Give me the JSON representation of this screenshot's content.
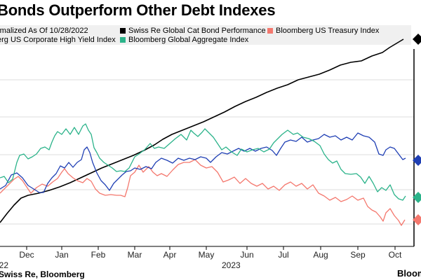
{
  "title": "Bonds Outperform Other Debt Indexes",
  "footer": "Swiss Re, Bloomberg",
  "brand": "Bloom",
  "legend_items": [
    {
      "label": "rmalized As Of 10/28/2022",
      "color": ""
    },
    {
      "label": "Swiss Re Global Cat Bond Performance",
      "color": "#000000"
    },
    {
      "label": "Bloomberg US Treasury Index",
      "color": "#f4786e"
    },
    {
      "label": "erg US Corporate High Yield Index",
      "color": ""
    },
    {
      "label": "Bloomberg Global Aggregate Index",
      "color": "#2bb38a"
    }
  ],
  "chart_data": {
    "type": "line",
    "x_tick_labels": [
      "Dec",
      "Jan",
      "Feb",
      "Mar",
      "Apr",
      "May",
      "Jun",
      "Jul",
      "Aug",
      "Sep",
      "Oct"
    ],
    "year_labels": [
      "022",
      "2023"
    ],
    "grid": true,
    "legend": "top",
    "series": [
      {
        "name": "Swiss Re Global Cat Bond Performance",
        "color": "#000000",
        "values": [
          [
            0,
            318
          ],
          [
            10,
            305
          ],
          [
            20,
            293
          ],
          [
            30,
            283
          ],
          [
            40,
            279
          ],
          [
            55,
            276
          ],
          [
            70,
            272
          ],
          [
            85,
            267
          ],
          [
            100,
            261
          ],
          [
            115,
            254
          ],
          [
            130,
            247
          ],
          [
            145,
            240
          ],
          [
            160,
            234
          ],
          [
            175,
            228
          ],
          [
            190,
            222
          ],
          [
            205,
            215
          ],
          [
            220,
            207
          ],
          [
            232,
            199
          ],
          [
            245,
            192
          ],
          [
            260,
            186
          ],
          [
            275,
            180
          ],
          [
            290,
            174
          ],
          [
            305,
            167
          ],
          [
            320,
            160
          ],
          [
            335,
            152
          ],
          [
            350,
            145
          ],
          [
            365,
            139
          ],
          [
            380,
            132
          ],
          [
            395,
            126
          ],
          [
            410,
            121
          ],
          [
            425,
            114
          ],
          [
            440,
            110
          ],
          [
            455,
            106
          ],
          [
            470,
            100
          ],
          [
            485,
            93
          ],
          [
            500,
            89
          ],
          [
            515,
            87
          ],
          [
            530,
            80
          ],
          [
            545,
            75
          ],
          [
            555,
            68
          ],
          [
            565,
            62
          ],
          [
            575,
            56
          ]
        ]
      },
      {
        "name": "Bloomberg US Treasury Index",
        "color": "#f4786e",
        "values": [
          [
            0,
            276
          ],
          [
            8,
            268
          ],
          [
            14,
            262
          ],
          [
            20,
            256
          ],
          [
            26,
            252
          ],
          [
            32,
            258
          ],
          [
            38,
            267
          ],
          [
            44,
            276
          ],
          [
            52,
            268
          ],
          [
            60,
            263
          ],
          [
            68,
            266
          ],
          [
            75,
            260
          ],
          [
            82,
            255
          ],
          [
            88,
            246
          ],
          [
            92,
            241
          ],
          [
            97,
            248
          ],
          [
            104,
            254
          ],
          [
            110,
            258
          ],
          [
            118,
            261
          ],
          [
            124,
            255
          ],
          [
            130,
            259
          ],
          [
            136,
            270
          ],
          [
            142,
            276
          ],
          [
            150,
            279
          ],
          [
            158,
            278
          ],
          [
            166,
            279
          ],
          [
            172,
            279
          ],
          [
            178,
            281
          ],
          [
            182,
            268
          ],
          [
            186,
            251
          ],
          [
            192,
            246
          ],
          [
            198,
            236
          ],
          [
            204,
            246
          ],
          [
            212,
            238
          ],
          [
            218,
            246
          ],
          [
            224,
            251
          ],
          [
            230,
            248
          ],
          [
            238,
            252
          ],
          [
            246,
            243
          ],
          [
            254,
            235
          ],
          [
            262,
            232
          ],
          [
            270,
            232
          ],
          [
            278,
            228
          ],
          [
            286,
            236
          ],
          [
            294,
            240
          ],
          [
            302,
            238
          ],
          [
            310,
            246
          ],
          [
            318,
            260
          ],
          [
            326,
            257
          ],
          [
            334,
            253
          ],
          [
            342,
            262
          ],
          [
            350,
            255
          ],
          [
            358,
            262
          ],
          [
            366,
            266
          ],
          [
            374,
            262
          ],
          [
            382,
            270
          ],
          [
            390,
            266
          ],
          [
            398,
            272
          ],
          [
            406,
            264
          ],
          [
            414,
            260
          ],
          [
            422,
            266
          ],
          [
            430,
            262
          ],
          [
            438,
            270
          ],
          [
            446,
            264
          ],
          [
            454,
            276
          ],
          [
            462,
            280
          ],
          [
            470,
            286
          ],
          [
            478,
            282
          ],
          [
            486,
            288
          ],
          [
            494,
            285
          ],
          [
            502,
            280
          ],
          [
            510,
            286
          ],
          [
            518,
            283
          ],
          [
            524,
            295
          ],
          [
            530,
            300
          ],
          [
            536,
            303
          ],
          [
            542,
            310
          ],
          [
            546,
            316
          ],
          [
            550,
            304
          ],
          [
            556,
            298
          ],
          [
            562,
            308
          ],
          [
            568,
            315
          ],
          [
            572,
            322
          ],
          [
            577,
            314
          ]
        ]
      },
      {
        "name": "Bloomberg US Corporate High Yield Index",
        "color": "#1f3fb4",
        "values": [
          [
            0,
            270
          ],
          [
            8,
            265
          ],
          [
            16,
            250
          ],
          [
            24,
            247
          ],
          [
            32,
            254
          ],
          [
            40,
            265
          ],
          [
            48,
            270
          ],
          [
            56,
            275
          ],
          [
            62,
            275
          ],
          [
            68,
            262
          ],
          [
            74,
            254
          ],
          [
            80,
            248
          ],
          [
            86,
            237
          ],
          [
            92,
            240
          ],
          [
            98,
            232
          ],
          [
            104,
            239
          ],
          [
            110,
            232
          ],
          [
            116,
            228
          ],
          [
            120,
            214
          ],
          [
            124,
            210
          ],
          [
            128,
            218
          ],
          [
            132,
            232
          ],
          [
            138,
            247
          ],
          [
            144,
            258
          ],
          [
            150,
            264
          ],
          [
            156,
            272
          ],
          [
            162,
            262
          ],
          [
            168,
            256
          ],
          [
            174,
            250
          ],
          [
            180,
            245
          ],
          [
            186,
            244
          ],
          [
            192,
            240
          ],
          [
            200,
            242
          ],
          [
            208,
            238
          ],
          [
            216,
            241
          ],
          [
            222,
            232
          ],
          [
            230,
            226
          ],
          [
            238,
            229
          ],
          [
            246,
            233
          ],
          [
            254,
            226
          ],
          [
            262,
            229
          ],
          [
            270,
            226
          ],
          [
            278,
            228
          ],
          [
            286,
            224
          ],
          [
            294,
            226
          ],
          [
            300,
            232
          ],
          [
            308,
            224
          ],
          [
            316,
            218
          ],
          [
            324,
            220
          ],
          [
            332,
            216
          ],
          [
            340,
            212
          ],
          [
            348,
            216
          ],
          [
            356,
            212
          ],
          [
            364,
            216
          ],
          [
            372,
            212
          ],
          [
            380,
            210
          ],
          [
            388,
            215
          ],
          [
            394,
            222
          ],
          [
            400,
            212
          ],
          [
            406,
            203
          ],
          [
            414,
            200
          ],
          [
            422,
            202
          ],
          [
            430,
            196
          ],
          [
            438,
            203
          ],
          [
            446,
            200
          ],
          [
            454,
            198
          ],
          [
            462,
            192
          ],
          [
            470,
            196
          ],
          [
            478,
            194
          ],
          [
            486,
            200
          ],
          [
            494,
            196
          ],
          [
            502,
            200
          ],
          [
            510,
            190
          ],
          [
            518,
            194
          ],
          [
            526,
            196
          ],
          [
            534,
            203
          ],
          [
            540,
            220
          ],
          [
            546,
            222
          ],
          [
            550,
            214
          ],
          [
            556,
            210
          ],
          [
            562,
            212
          ],
          [
            568,
            220
          ],
          [
            574,
            228
          ],
          [
            578,
            226
          ]
        ]
      },
      {
        "name": "Bloomberg Global Aggregate Index",
        "color": "#2bb38a",
        "values": [
          [
            0,
            254
          ],
          [
            6,
            252
          ],
          [
            12,
            261
          ],
          [
            18,
            256
          ],
          [
            24,
            232
          ],
          [
            28,
            222
          ],
          [
            34,
            220
          ],
          [
            40,
            227
          ],
          [
            46,
            224
          ],
          [
            52,
            220
          ],
          [
            58,
            212
          ],
          [
            64,
            210
          ],
          [
            70,
            214
          ],
          [
            74,
            203
          ],
          [
            78,
            194
          ],
          [
            82,
            188
          ],
          [
            88,
            192
          ],
          [
            94,
            184
          ],
          [
            100,
            192
          ],
          [
            106,
            182
          ],
          [
            112,
            192
          ],
          [
            118,
            180
          ],
          [
            122,
            177
          ],
          [
            126,
            186
          ],
          [
            130,
            192
          ],
          [
            134,
            211
          ],
          [
            138,
            218
          ],
          [
            142,
            226
          ],
          [
            148,
            232
          ],
          [
            154,
            236
          ],
          [
            160,
            240
          ],
          [
            166,
            245
          ],
          [
            172,
            244
          ],
          [
            178,
            245
          ],
          [
            184,
            240
          ],
          [
            188,
            232
          ],
          [
            192,
            224
          ],
          [
            198,
            220
          ],
          [
            206,
            214
          ],
          [
            214,
            205
          ],
          [
            220,
            212
          ],
          [
            226,
            210
          ],
          [
            234,
            212
          ],
          [
            242,
            205
          ],
          [
            250,
            198
          ],
          [
            258,
            192
          ],
          [
            266,
            200
          ],
          [
            272,
            186
          ],
          [
            276,
            190
          ],
          [
            282,
            195
          ],
          [
            288,
            189
          ],
          [
            292,
            184
          ],
          [
            298,
            190
          ],
          [
            304,
            196
          ],
          [
            310,
            205
          ],
          [
            316,
            214
          ],
          [
            322,
            210
          ],
          [
            330,
            217
          ],
          [
            338,
            222
          ],
          [
            344,
            213
          ],
          [
            352,
            217
          ],
          [
            360,
            214
          ],
          [
            368,
            212
          ],
          [
            376,
            217
          ],
          [
            384,
            213
          ],
          [
            390,
            204
          ],
          [
            396,
            198
          ],
          [
            402,
            192
          ],
          [
            410,
            186
          ],
          [
            418,
            192
          ],
          [
            424,
            190
          ],
          [
            432,
            196
          ],
          [
            440,
            198
          ],
          [
            448,
            202
          ],
          [
            456,
            208
          ],
          [
            462,
            220
          ],
          [
            468,
            228
          ],
          [
            474,
            233
          ],
          [
            480,
            230
          ],
          [
            486,
            242
          ],
          [
            492,
            248
          ],
          [
            500,
            249
          ],
          [
            508,
            248
          ],
          [
            514,
            253
          ],
          [
            520,
            262
          ],
          [
            526,
            252
          ],
          [
            532,
            262
          ],
          [
            538,
            274
          ],
          [
            544,
            268
          ],
          [
            550,
            272
          ],
          [
            556,
            264
          ],
          [
            562,
            278
          ],
          [
            568,
            284
          ],
          [
            574,
            286
          ],
          [
            578,
            280
          ]
        ]
      }
    ]
  }
}
